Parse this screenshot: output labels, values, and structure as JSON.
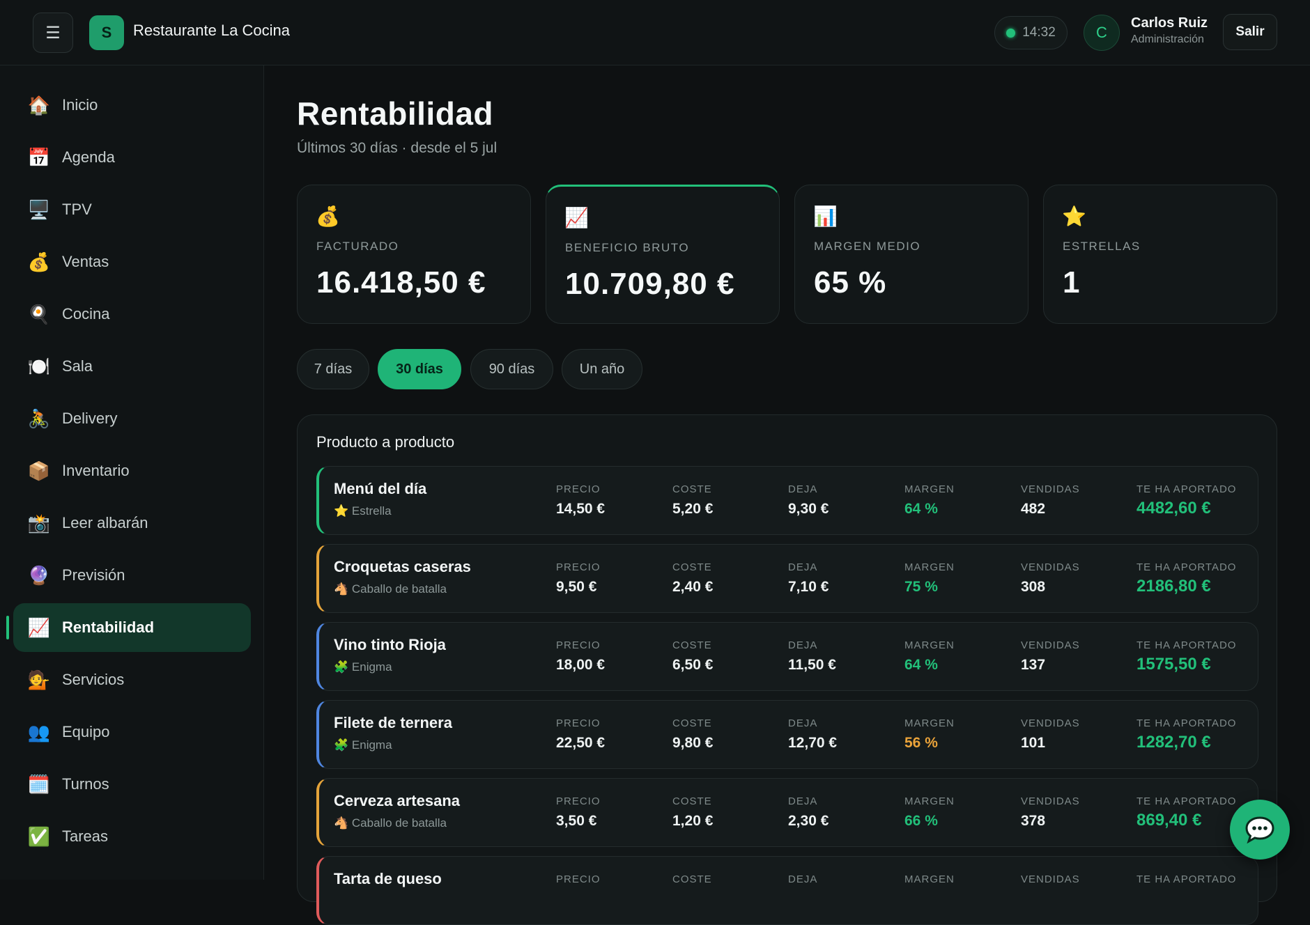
{
  "header": {
    "brand": "Restaurante La Cocina",
    "logo_letter": "S",
    "time": "14:32",
    "user_initial": "C",
    "user_name": "Carlos Ruiz",
    "user_role": "Administración",
    "logout_label": "Salir",
    "menu_icon": "☰"
  },
  "sidebar": {
    "items": [
      {
        "icon": "🏠",
        "icon_name": "home-icon",
        "label": "Inicio"
      },
      {
        "icon": "📅",
        "icon_name": "calendar-icon",
        "label": "Agenda"
      },
      {
        "icon": "🖥️",
        "icon_name": "monitor-icon",
        "label": "TPV"
      },
      {
        "icon": "💰",
        "icon_name": "money-bag-icon",
        "label": "Ventas"
      },
      {
        "icon": "🍳",
        "icon_name": "frying-pan-icon",
        "label": "Cocina"
      },
      {
        "icon": "🍽️",
        "icon_name": "plate-icon",
        "label": "Sala"
      },
      {
        "icon": "🚴",
        "icon_name": "cyclist-icon",
        "label": "Delivery"
      },
      {
        "icon": "📦",
        "icon_name": "package-icon",
        "label": "Inventario"
      },
      {
        "icon": "📸",
        "icon_name": "camera-icon",
        "label": "Leer albarán"
      },
      {
        "icon": "🔮",
        "icon_name": "crystal-ball-icon",
        "label": "Previsión"
      },
      {
        "icon": "📈",
        "icon_name": "chart-up-icon",
        "label": "Rentabilidad",
        "active": true
      },
      {
        "icon": "💁",
        "icon_name": "person-info-icon",
        "label": "Servicios"
      },
      {
        "icon": "👥",
        "icon_name": "team-icon",
        "label": "Equipo"
      },
      {
        "icon": "🗓️",
        "icon_name": "calendar-spiral-icon",
        "label": "Turnos"
      },
      {
        "icon": "✅",
        "icon_name": "check-icon",
        "label": "Tareas"
      }
    ]
  },
  "main": {
    "title": "Rentabilidad",
    "subtitle": "Últimos 30 días · desde el 5 jul",
    "kpis": [
      {
        "icon": "💰",
        "icon_name": "money-bag-icon",
        "label": "FACTURADO",
        "value": "16.418,50 €"
      },
      {
        "icon": "📈",
        "icon_name": "chart-up-icon",
        "label": "BENEFICIO BRUTO",
        "value": "10.709,80 €"
      },
      {
        "icon": "📊",
        "icon_name": "bar-chart-icon",
        "label": "MARGEN MEDIO",
        "value": "65 %"
      },
      {
        "icon": "⭐",
        "icon_name": "star-icon",
        "label": "ESTRELLAS",
        "value": "1"
      }
    ],
    "periods": [
      {
        "label": "7 días"
      },
      {
        "label": "30 días",
        "active": true
      },
      {
        "label": "90 días"
      },
      {
        "label": "Un año"
      }
    ],
    "panel_title": "Producto a producto",
    "columns": {
      "price": "PRECIO",
      "cost": "COSTE",
      "leaves": "DEJA",
      "margin": "MARGEN",
      "sold": "VENDIDAS",
      "contributed": "TE HA APORTADO"
    },
    "products": [
      {
        "name": "Menú del día",
        "tag_icon": "⭐",
        "tag_icon_name": "star-icon",
        "tag": "Estrella",
        "accent": "#22c07a",
        "price": "14,50 €",
        "cost": "5,20 €",
        "leaves": "9,30 €",
        "margin": "64 %",
        "margin_color": "#22c07a",
        "sold": "482",
        "contributed": "4482,60 €"
      },
      {
        "name": "Croquetas caseras",
        "tag_icon": "🐴",
        "tag_icon_name": "horse-icon",
        "tag": "Caballo de batalla",
        "accent": "#e5a43a",
        "price": "9,50 €",
        "cost": "2,40 €",
        "leaves": "7,10 €",
        "margin": "75 %",
        "margin_color": "#22c07a",
        "sold": "308",
        "contributed": "2186,80 €"
      },
      {
        "name": "Vino tinto Rioja",
        "tag_icon": "🧩",
        "tag_icon_name": "puzzle-icon",
        "tag": "Enigma",
        "accent": "#4f86e0",
        "price": "18,00 €",
        "cost": "6,50 €",
        "leaves": "11,50 €",
        "margin": "64 %",
        "margin_color": "#22c07a",
        "sold": "137",
        "contributed": "1575,50 €"
      },
      {
        "name": "Filete de ternera",
        "tag_icon": "🧩",
        "tag_icon_name": "puzzle-icon",
        "tag": "Enigma",
        "accent": "#4f86e0",
        "price": "22,50 €",
        "cost": "9,80 €",
        "leaves": "12,70 €",
        "margin": "56 %",
        "margin_color": "#eaa33a",
        "sold": "101",
        "contributed": "1282,70 €"
      },
      {
        "name": "Cerveza artesana",
        "tag_icon": "🐴",
        "tag_icon_name": "horse-icon",
        "tag": "Caballo de batalla",
        "accent": "#e5a43a",
        "price": "3,50 €",
        "cost": "1,20 €",
        "leaves": "2,30 €",
        "margin": "66 %",
        "margin_color": "#22c07a",
        "sold": "378",
        "contributed": "869,40 €"
      },
      {
        "name": "Tarta de queso",
        "tag_icon": "",
        "tag_icon_name": "",
        "tag": "",
        "accent": "#e05b5b",
        "price": "",
        "cost": "",
        "leaves": "",
        "margin": "",
        "margin_color": "#22c07a",
        "sold": "",
        "contributed": ""
      }
    ]
  },
  "chat_icon": "chat-bubble-icon"
}
